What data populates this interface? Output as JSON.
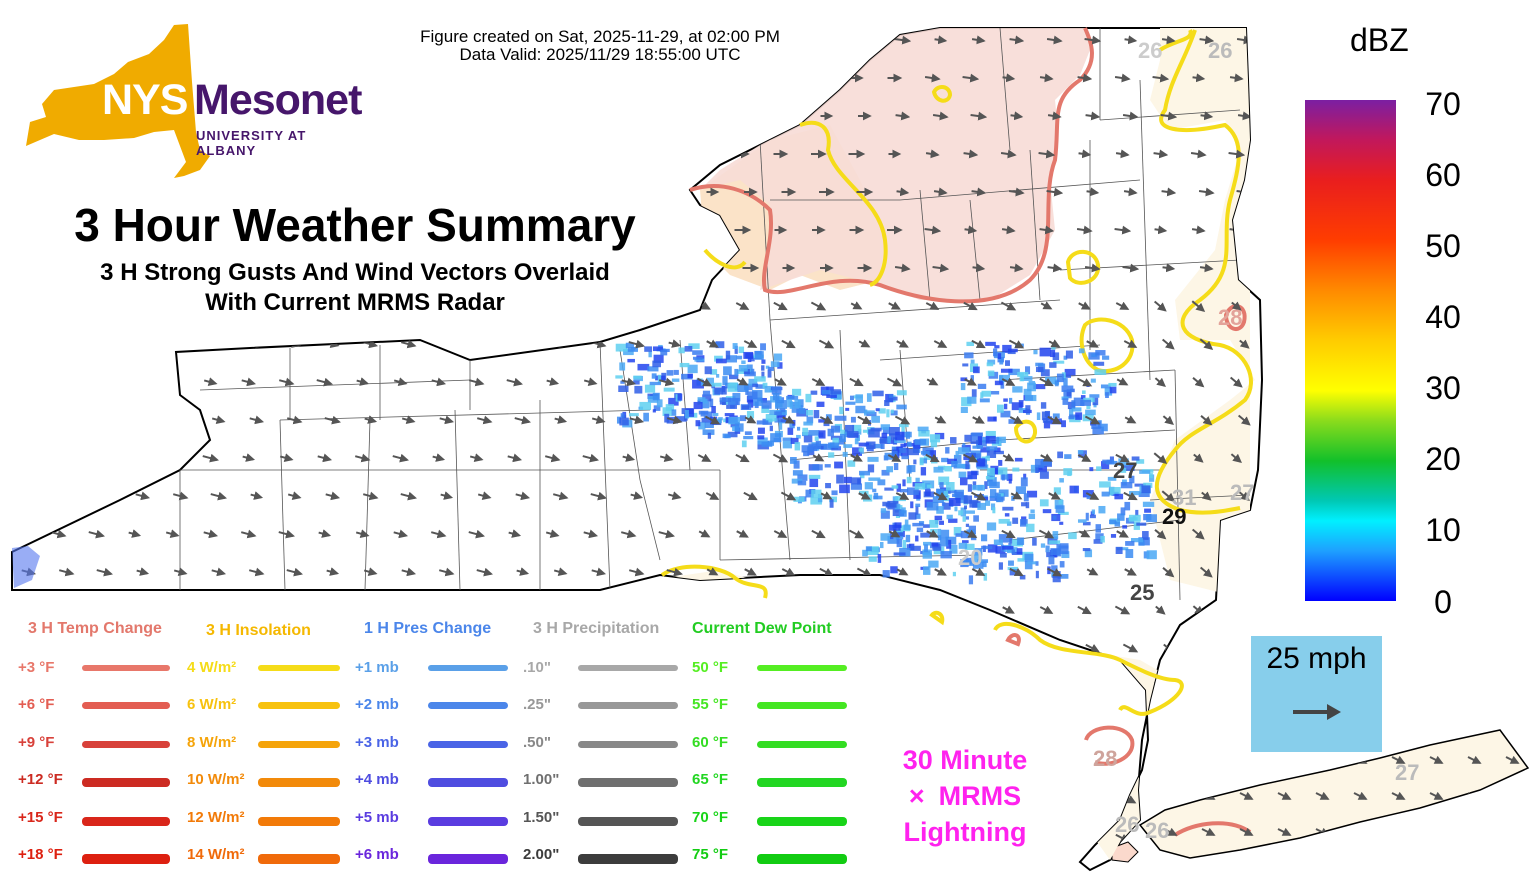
{
  "header": {
    "created": "Figure created on Sat, 2025-11-29, at 02:00 PM",
    "valid": "Data Valid: 2025/11/29 18:55:00 UTC"
  },
  "logo": {
    "text_nys": "NYS",
    "text_mesonet": "Mesonet",
    "text_univ": "UNIVERSITY AT ALBANY",
    "gold": "#f0ab00",
    "purple": "#46166b"
  },
  "title": "3 Hour Weather Summary",
  "subtitle_line1": "3 H Strong Gusts And Wind Vectors Overlaid",
  "subtitle_line2": "With Current MRMS Radar",
  "colorbar": {
    "unit": "dBZ",
    "ticks": [
      "70",
      "60",
      "50",
      "40",
      "30",
      "20",
      "10",
      "0"
    ]
  },
  "wind_scale": {
    "label": "25 mph"
  },
  "lightning": {
    "line1": "30 Minute",
    "marker": "×",
    "line2": "MRMS",
    "line3": "Lightning",
    "color": "#ff22ee"
  },
  "legend": {
    "temp": {
      "title": "3 H Temp Change",
      "items": [
        "+3 °F",
        "+6 °F",
        "+9 °F",
        "+12 °F",
        "+15 °F",
        "+18 °F"
      ],
      "colors": [
        "#e8776a",
        "#e35d52",
        "#d8413a",
        "#cc2b22",
        "#d9261a",
        "#dd2010"
      ]
    },
    "insolation": {
      "title": "3 H Insolation",
      "items": [
        "4 W/m²",
        "6 W/m²",
        "8 W/m²",
        "10 W/m²",
        "12 W/m²",
        "14 W/m²"
      ],
      "colors": [
        "#f5dc19",
        "#f7c20f",
        "#f5a40a",
        "#f28a0a",
        "#f27a08",
        "#f06a0a"
      ]
    },
    "pressure": {
      "title": "1 H Pres Change",
      "items": [
        "+1 mb",
        "+2 mb",
        "+3 mb",
        "+4 mb",
        "+5 mb",
        "+6 mb"
      ],
      "colors": [
        "#5aa0e8",
        "#4b86ea",
        "#4a64e6",
        "#4f4de0",
        "#5a3ce0",
        "#6a25dc"
      ]
    },
    "precip": {
      "title": "3 H Precipitation",
      "items": [
        ".10\"",
        ".25\"",
        ".50\"",
        "1.00\"",
        "1.50\"",
        "2.00\""
      ],
      "colors": [
        "#a8a8a8",
        "#989898",
        "#888888",
        "#6f6f6f",
        "#555555",
        "#3c3c3c"
      ]
    },
    "dewpoint": {
      "title": "Current Dew Point",
      "items": [
        "50 °F",
        "55 °F",
        "60 °F",
        "65 °F",
        "70 °F",
        "75 °F"
      ],
      "colors": [
        "#55ee22",
        "#44e622",
        "#33dd22",
        "#22d622",
        "#18d418",
        "#12cc12"
      ]
    }
  },
  "gust_labels": [
    {
      "text": "26",
      "style": "light"
    },
    {
      "text": "26",
      "style": "light"
    },
    {
      "text": "28",
      "style": "light"
    },
    {
      "text": "27",
      "style": "dark"
    },
    {
      "text": "31",
      "style": "light"
    },
    {
      "text": "27",
      "style": "light"
    },
    {
      "text": "29",
      "style": "black"
    },
    {
      "text": "25",
      "style": "dark"
    },
    {
      "text": "20",
      "style": "light"
    },
    {
      "text": "28",
      "style": "light"
    },
    {
      "text": "26",
      "style": "light"
    },
    {
      "text": "26",
      "style": "light"
    },
    {
      "text": "27",
      "style": "light"
    }
  ]
}
